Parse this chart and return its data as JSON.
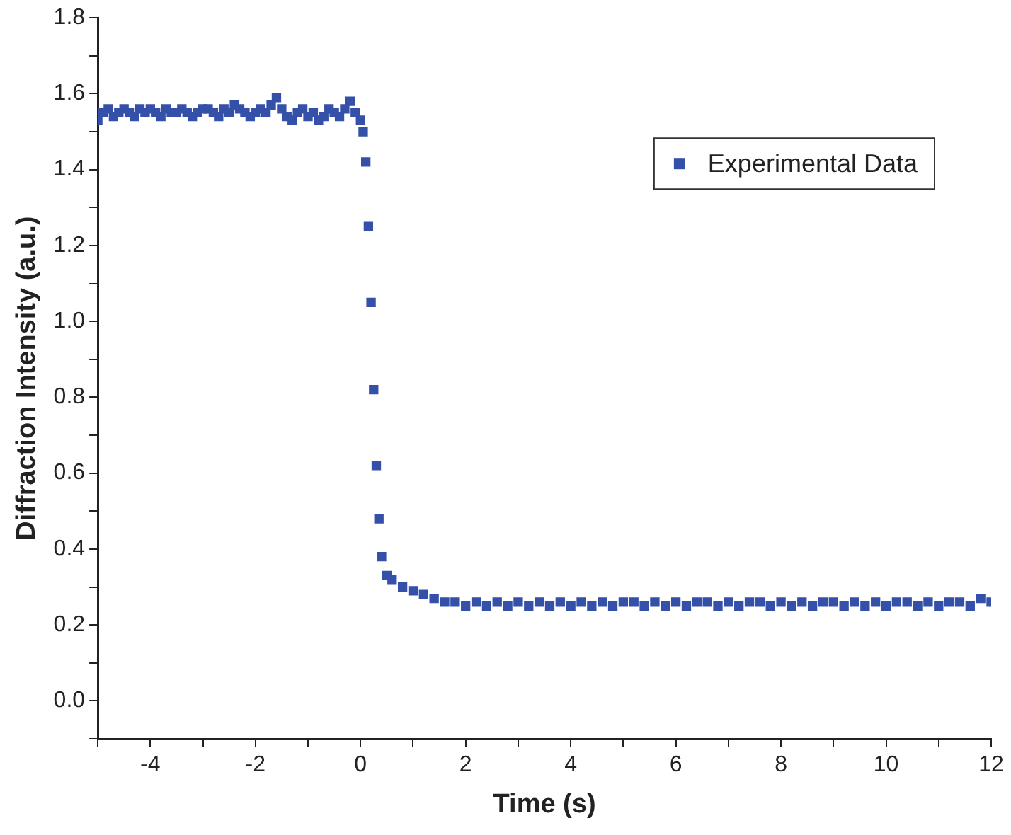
{
  "chart_data": {
    "type": "scatter",
    "xlabel": "Time (s)",
    "ylabel": "Diffraction Intensity (a.u.)",
    "xlim": [
      -5,
      12
    ],
    "ylim": [
      -0.1,
      1.8
    ],
    "xticks": [
      {
        "value": -5,
        "label": null
      },
      -4,
      {
        "value": -3,
        "label": null
      },
      -2,
      {
        "value": -1,
        "label": null
      },
      0,
      {
        "value": 1,
        "label": null
      },
      2,
      {
        "value": 3,
        "label": null
      },
      4,
      {
        "value": 5,
        "label": null
      },
      6,
      {
        "value": 7,
        "label": null
      },
      8,
      {
        "value": 9,
        "label": null
      },
      10,
      {
        "value": 11,
        "label": null
      },
      12
    ],
    "yticks": [
      {
        "value": -0.1,
        "label": null
      },
      {
        "value": 0,
        "label": "0.0"
      },
      {
        "value": 0.1,
        "label": null
      },
      0.2,
      {
        "value": 0.3,
        "label": null
      },
      0.4,
      {
        "value": 0.5,
        "label": null
      },
      0.6,
      {
        "value": 0.7,
        "label": null
      },
      0.8,
      {
        "value": 0.9,
        "label": null
      },
      {
        "value": 1,
        "label": "1.0"
      },
      {
        "value": 1.1,
        "label": null
      },
      1.2,
      {
        "value": 1.3,
        "label": null
      },
      1.4,
      {
        "value": 1.5,
        "label": null
      },
      1.6,
      {
        "value": 1.7,
        "label": null
      },
      1.8
    ],
    "grid": false,
    "legend": "top right",
    "marker": "square",
    "series": [
      {
        "name": "Experimental Data",
        "color": "#3550a8",
        "x": [
          -5,
          -4.9,
          -4.8,
          -4.7,
          -4.6,
          -4.5,
          -4.4,
          -4.3,
          -4.2,
          -4.1,
          -4,
          -3.9,
          -3.8,
          -3.7,
          -3.6,
          -3.5,
          -3.4,
          -3.3,
          -3.2,
          -3.1,
          -3,
          -2.9,
          -2.8,
          -2.7,
          -2.6,
          -2.5,
          -2.4,
          -2.3,
          -2.2,
          -2.1,
          -2,
          -1.9,
          -1.8,
          -1.7,
          -1.6,
          -1.5,
          -1.4,
          -1.3,
          -1.2,
          -1.1,
          -1,
          -0.9,
          -0.8,
          -0.7,
          -0.6,
          -0.5,
          -0.4,
          -0.3,
          -0.2,
          -0.1,
          0,
          0.05,
          0.1,
          0.15,
          0.2,
          0.25,
          0.3,
          0.35,
          0.4,
          0.5,
          0.6,
          0.8,
          1,
          1.2,
          1.4,
          1.6,
          1.8,
          2,
          2.2,
          2.4,
          2.6,
          2.8,
          3,
          3.2,
          3.4,
          3.6,
          3.8,
          4,
          4.2,
          4.4,
          4.6,
          4.8,
          5,
          5.2,
          5.4,
          5.6,
          5.8,
          6,
          6.2,
          6.4,
          6.6,
          6.8,
          7,
          7.2,
          7.4,
          7.6,
          7.8,
          8,
          8.2,
          8.4,
          8.6,
          8.8,
          9,
          9.2,
          9.4,
          9.6,
          9.8,
          10,
          10.2,
          10.4,
          10.6,
          10.8,
          11,
          11.2,
          11.4,
          11.6,
          11.8,
          12
        ],
        "values": [
          1.53,
          1.55,
          1.56,
          1.54,
          1.55,
          1.56,
          1.55,
          1.54,
          1.56,
          1.55,
          1.56,
          1.55,
          1.54,
          1.56,
          1.55,
          1.55,
          1.56,
          1.55,
          1.54,
          1.55,
          1.56,
          1.56,
          1.55,
          1.54,
          1.56,
          1.55,
          1.57,
          1.56,
          1.55,
          1.54,
          1.55,
          1.56,
          1.55,
          1.57,
          1.59,
          1.56,
          1.54,
          1.53,
          1.55,
          1.56,
          1.54,
          1.55,
          1.53,
          1.54,
          1.56,
          1.55,
          1.54,
          1.56,
          1.58,
          1.55,
          1.53,
          1.5,
          1.42,
          1.25,
          1.05,
          0.82,
          0.62,
          0.48,
          0.38,
          0.33,
          0.32,
          0.3,
          0.29,
          0.28,
          0.27,
          0.26,
          0.26,
          0.25,
          0.26,
          0.25,
          0.26,
          0.25,
          0.26,
          0.25,
          0.26,
          0.25,
          0.26,
          0.25,
          0.26,
          0.25,
          0.26,
          0.25,
          0.26,
          0.26,
          0.25,
          0.26,
          0.25,
          0.26,
          0.25,
          0.26,
          0.26,
          0.25,
          0.26,
          0.25,
          0.26,
          0.26,
          0.25,
          0.26,
          0.25,
          0.26,
          0.25,
          0.26,
          0.26,
          0.25,
          0.26,
          0.25,
          0.26,
          0.25,
          0.26,
          0.26,
          0.25,
          0.26,
          0.25,
          0.26,
          0.26,
          0.25,
          0.27,
          0.26
        ]
      }
    ]
  }
}
